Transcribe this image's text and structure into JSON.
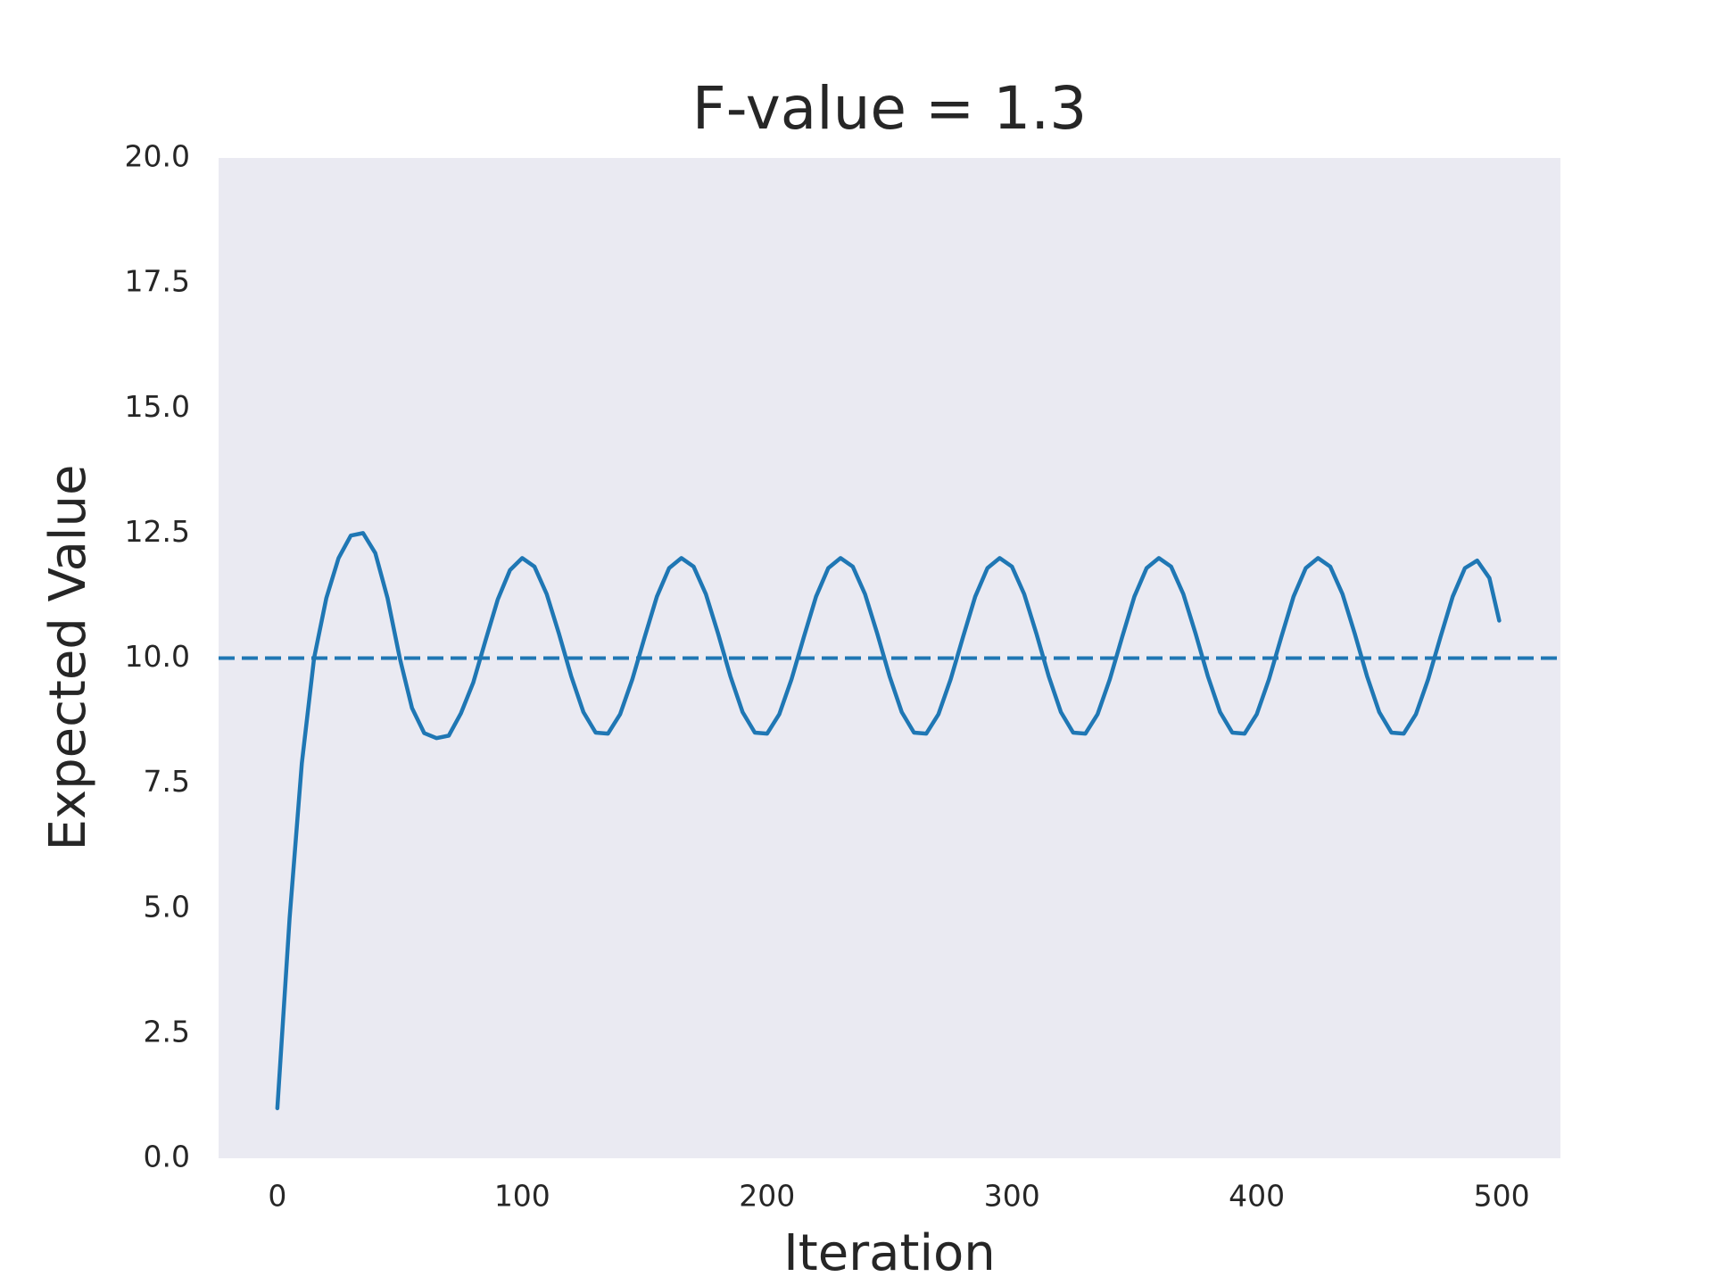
{
  "chart_data": {
    "type": "line",
    "title": "F-value = 1.3",
    "x_label": "Iteration",
    "y_label": "Expected Value",
    "x": [
      0,
      5,
      10,
      15,
      20,
      25,
      30,
      35,
      40,
      45,
      50,
      55,
      60,
      65,
      70,
      75,
      80,
      85,
      90,
      95,
      100,
      105,
      110,
      115,
      120,
      125,
      130,
      135,
      140,
      145,
      150,
      155,
      160,
      165,
      170,
      175,
      180,
      185,
      190,
      195,
      200,
      205,
      210,
      215,
      220,
      225,
      230,
      235,
      240,
      245,
      250,
      255,
      260,
      265,
      270,
      275,
      280,
      285,
      290,
      295,
      300,
      305,
      310,
      315,
      320,
      325,
      330,
      335,
      340,
      345,
      350,
      355,
      360,
      365,
      370,
      375,
      380,
      385,
      390,
      395,
      400,
      405,
      410,
      415,
      420,
      425,
      430,
      435,
      440,
      445,
      450,
      455,
      460,
      465,
      470,
      475,
      480,
      485,
      490,
      495,
      499
    ],
    "series": [
      {
        "color": "#1f77b4",
        "values": [
          1.0,
          4.8,
          7.9,
          10.0,
          11.2,
          12.0,
          12.45,
          12.5,
          12.1,
          11.2,
          10.0,
          9.0,
          8.5,
          8.4,
          8.45,
          8.9,
          9.51,
          10.35,
          11.17,
          11.76,
          12.0,
          11.83,
          11.28,
          10.49,
          9.64,
          8.92,
          8.51,
          8.49,
          8.88,
          9.58,
          10.42,
          11.23,
          11.8,
          12.0,
          11.83,
          11.28,
          10.49,
          9.64,
          8.92,
          8.51,
          8.49,
          8.88,
          9.58,
          10.42,
          11.23,
          11.8,
          12.0,
          11.83,
          11.28,
          10.49,
          9.64,
          8.92,
          8.51,
          8.49,
          8.88,
          9.58,
          10.42,
          11.23,
          11.8,
          12.0,
          11.83,
          11.28,
          10.49,
          9.64,
          8.92,
          8.51,
          8.49,
          8.88,
          9.58,
          10.42,
          11.23,
          11.8,
          12.0,
          11.83,
          11.28,
          10.49,
          9.64,
          8.92,
          8.51,
          8.49,
          8.88,
          9.58,
          10.42,
          11.23,
          11.8,
          12.0,
          11.83,
          11.28,
          10.49,
          9.64,
          8.92,
          8.51,
          8.49,
          8.88,
          9.58,
          10.42,
          11.23,
          11.8,
          11.95,
          11.6,
          10.75
        ]
      }
    ],
    "hline": {
      "value": 10,
      "color": "#1f77b4",
      "style": "dashed"
    },
    "xlim": [
      -24,
      524
    ],
    "xticks": [
      0,
      100,
      200,
      300,
      400,
      500
    ],
    "ylim": [
      0,
      20
    ],
    "yticks": [
      {
        "value": 0,
        "label": "0.0"
      },
      2.5,
      {
        "value": 5,
        "label": "5.0"
      },
      7.5,
      {
        "value": 10,
        "label": "10.0"
      },
      12.5,
      {
        "value": 15,
        "label": "15.0"
      },
      17.5,
      {
        "value": 20,
        "label": "20.0"
      }
    ],
    "background": "#eaeaf2",
    "grid": false
  }
}
